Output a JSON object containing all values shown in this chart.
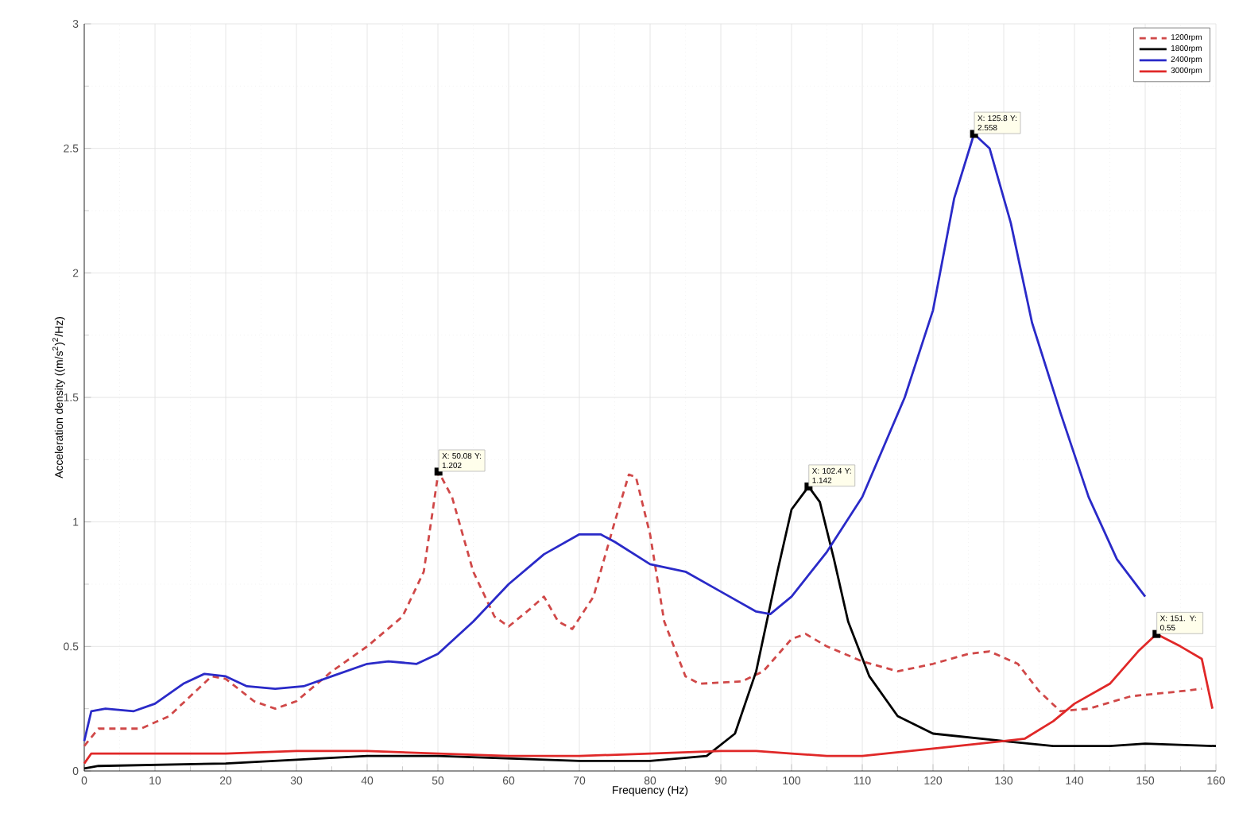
{
  "chart_data": {
    "type": "line",
    "xlabel": "Frequency (Hz)",
    "ylabel": "Acceleration density ((m/s$^{2}$)$^{2}$/Hz)",
    "xlim": [
      0,
      160
    ],
    "xticks": [
      0,
      10,
      20,
      30,
      40,
      50,
      60,
      70,
      80,
      90,
      100,
      110,
      120,
      130,
      140,
      150,
      160
    ],
    "ylim": [
      0,
      3
    ],
    "yticks": [
      0,
      0.5,
      1,
      1.5,
      2,
      2.5,
      3
    ],
    "grid": true,
    "legend": "top right",
    "series": [
      {
        "name": "1200rpm",
        "color": "#d04848",
        "line_style": "dashed",
        "x": [
          0,
          2,
          8,
          12,
          18,
          20,
          24,
          27,
          30,
          35,
          40,
          45,
          48,
          50.08,
          52,
          55,
          58,
          60,
          63,
          65,
          67,
          69,
          72,
          75,
          77,
          78,
          80,
          82,
          85,
          87,
          93,
          96,
          100,
          102,
          105,
          110,
          115,
          120,
          125,
          128,
          132,
          135,
          138,
          142,
          148,
          155,
          158
        ],
        "values": [
          0.1,
          0.17,
          0.17,
          0.22,
          0.38,
          0.37,
          0.28,
          0.25,
          0.28,
          0.4,
          0.5,
          0.62,
          0.8,
          1.202,
          1.1,
          0.8,
          0.62,
          0.58,
          0.65,
          0.7,
          0.6,
          0.57,
          0.7,
          1.0,
          1.19,
          1.18,
          0.95,
          0.6,
          0.38,
          0.35,
          0.36,
          0.4,
          0.53,
          0.55,
          0.5,
          0.44,
          0.4,
          0.43,
          0.47,
          0.48,
          0.43,
          0.32,
          0.24,
          0.25,
          0.3,
          0.32,
          0.33
        ]
      },
      {
        "name": "1800rpm",
        "color": "#000000",
        "line_style": "solid",
        "x": [
          0,
          2,
          20,
          40,
          50,
          60,
          70,
          80,
          88,
          92,
          95,
          98,
          100,
          102.4,
          104,
          106,
          108,
          111,
          115,
          120,
          130,
          137,
          145,
          150,
          160
        ],
        "values": [
          0.01,
          0.02,
          0.03,
          0.06,
          0.06,
          0.05,
          0.04,
          0.04,
          0.06,
          0.15,
          0.4,
          0.8,
          1.05,
          1.142,
          1.08,
          0.85,
          0.6,
          0.38,
          0.22,
          0.15,
          0.12,
          0.1,
          0.1,
          0.11,
          0.1
        ]
      },
      {
        "name": "2400rpm",
        "color": "#2a2ac8",
        "line_style": "solid",
        "x": [
          0,
          1,
          3,
          7,
          10,
          14,
          17,
          20,
          23,
          27,
          31,
          35,
          40,
          43,
          47,
          50,
          55,
          60,
          65,
          70,
          73,
          75,
          80,
          85,
          90,
          95,
          97,
          100,
          105,
          110,
          116,
          120,
          123,
          125.8,
          128,
          131,
          134,
          138,
          142,
          146,
          150
        ],
        "values": [
          0.12,
          0.24,
          0.25,
          0.24,
          0.27,
          0.35,
          0.39,
          0.38,
          0.34,
          0.33,
          0.34,
          0.38,
          0.43,
          0.44,
          0.43,
          0.47,
          0.6,
          0.75,
          0.87,
          0.95,
          0.95,
          0.92,
          0.83,
          0.8,
          0.72,
          0.64,
          0.63,
          0.7,
          0.88,
          1.1,
          1.5,
          1.85,
          2.3,
          2.558,
          2.5,
          2.2,
          1.8,
          1.44,
          1.1,
          0.85,
          0.7
        ]
      },
      {
        "name": "3000rpm",
        "color": "#e02828",
        "line_style": "solid",
        "x": [
          0,
          1,
          10,
          20,
          30,
          40,
          50,
          60,
          70,
          80,
          90,
          95,
          100,
          105,
          110,
          120,
          130,
          133,
          137,
          140,
          145,
          149,
          151.6,
          155,
          158,
          159.5
        ],
        "values": [
          0.03,
          0.07,
          0.07,
          0.07,
          0.08,
          0.08,
          0.07,
          0.06,
          0.06,
          0.07,
          0.08,
          0.08,
          0.07,
          0.06,
          0.06,
          0.09,
          0.12,
          0.13,
          0.2,
          0.27,
          0.35,
          0.48,
          0.55,
          0.5,
          0.45,
          0.25
        ]
      }
    ],
    "annotations": [
      {
        "text": "X: 50.08 Y: 1.202",
        "x": 50.08,
        "y": 1.202
      },
      {
        "text": "X: 102.4 Y: 1.142",
        "x": 102.4,
        "y": 1.142
      },
      {
        "text": "X: 125.8 Y: 2.558",
        "x": 125.8,
        "y": 2.558
      },
      {
        "text": "X: 151. Y: 0.55",
        "x": 151.6,
        "y": 0.55
      }
    ]
  }
}
